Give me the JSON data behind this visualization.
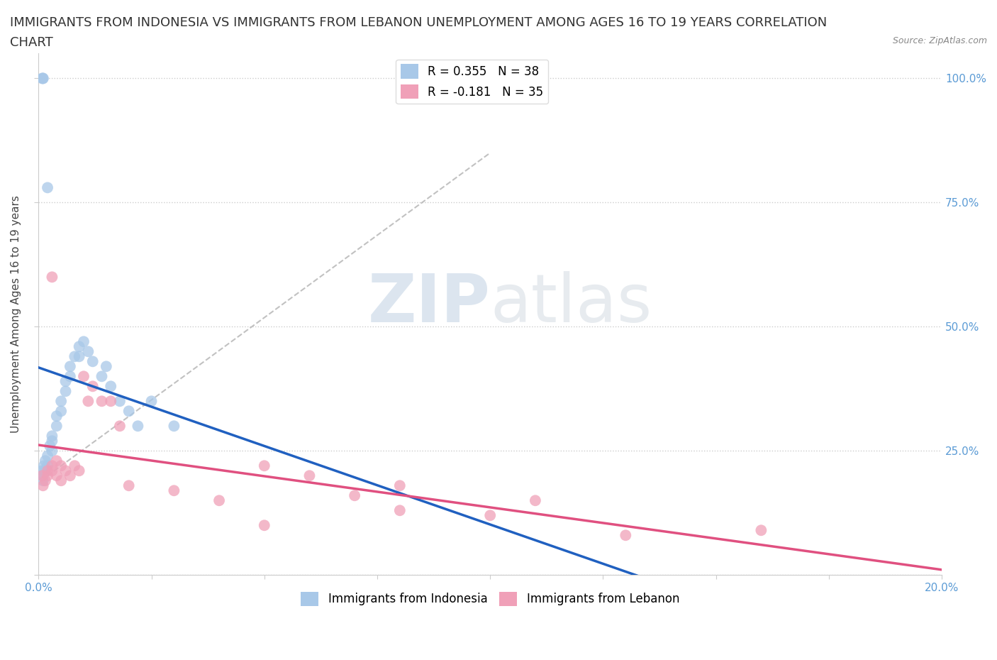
{
  "title_line1": "IMMIGRANTS FROM INDONESIA VS IMMIGRANTS FROM LEBANON UNEMPLOYMENT AMONG AGES 16 TO 19 YEARS CORRELATION",
  "title_line2": "CHART",
  "source_text": "Source: ZipAtlas.com",
  "ylabel": "Unemployment Among Ages 16 to 19 years",
  "xlim": [
    0.0,
    0.2
  ],
  "ylim": [
    0.0,
    1.05
  ],
  "r_indonesia": 0.355,
  "n_indonesia": 38,
  "r_lebanon": -0.181,
  "n_lebanon": 35,
  "indonesia_color": "#A8C8E8",
  "lebanon_color": "#F0A0B8",
  "indonesia_line_color": "#2060C0",
  "lebanon_line_color": "#E05080",
  "background_color": "#FFFFFF",
  "indonesia_x": [
    0.0008,
    0.001,
    0.001,
    0.0012,
    0.0014,
    0.0015,
    0.002,
    0.002,
    0.0025,
    0.003,
    0.003,
    0.003,
    0.004,
    0.004,
    0.005,
    0.005,
    0.006,
    0.006,
    0.007,
    0.007,
    0.008,
    0.009,
    0.009,
    0.01,
    0.011,
    0.012,
    0.014,
    0.015,
    0.016,
    0.018,
    0.02,
    0.022,
    0.025,
    0.03,
    0.0008,
    0.001,
    0.001,
    0.002
  ],
  "indonesia_y": [
    0.21,
    0.2,
    0.19,
    0.22,
    0.21,
    0.23,
    0.24,
    0.22,
    0.26,
    0.25,
    0.27,
    0.28,
    0.3,
    0.32,
    0.33,
    0.35,
    0.37,
    0.39,
    0.4,
    0.42,
    0.44,
    0.46,
    0.44,
    0.47,
    0.45,
    0.43,
    0.4,
    0.42,
    0.38,
    0.35,
    0.33,
    0.3,
    0.35,
    0.3,
    1.0,
    1.0,
    1.0,
    0.78
  ],
  "lebanon_x": [
    0.0008,
    0.001,
    0.0015,
    0.002,
    0.002,
    0.003,
    0.003,
    0.003,
    0.004,
    0.004,
    0.005,
    0.005,
    0.006,
    0.007,
    0.008,
    0.009,
    0.01,
    0.011,
    0.012,
    0.014,
    0.016,
    0.018,
    0.02,
    0.03,
    0.04,
    0.05,
    0.06,
    0.07,
    0.08,
    0.1,
    0.11,
    0.13,
    0.16,
    0.05,
    0.08
  ],
  "lebanon_y": [
    0.2,
    0.18,
    0.19,
    0.21,
    0.2,
    0.22,
    0.21,
    0.6,
    0.23,
    0.2,
    0.22,
    0.19,
    0.21,
    0.2,
    0.22,
    0.21,
    0.4,
    0.35,
    0.38,
    0.35,
    0.35,
    0.3,
    0.18,
    0.17,
    0.15,
    0.22,
    0.2,
    0.16,
    0.18,
    0.12,
    0.15,
    0.08,
    0.09,
    0.1,
    0.13
  ],
  "watermark_zip": "ZIP",
  "watermark_atlas": "atlas",
  "title_fontsize": 13,
  "axis_label_fontsize": 11,
  "tick_fontsize": 11,
  "legend_fontsize": 12
}
